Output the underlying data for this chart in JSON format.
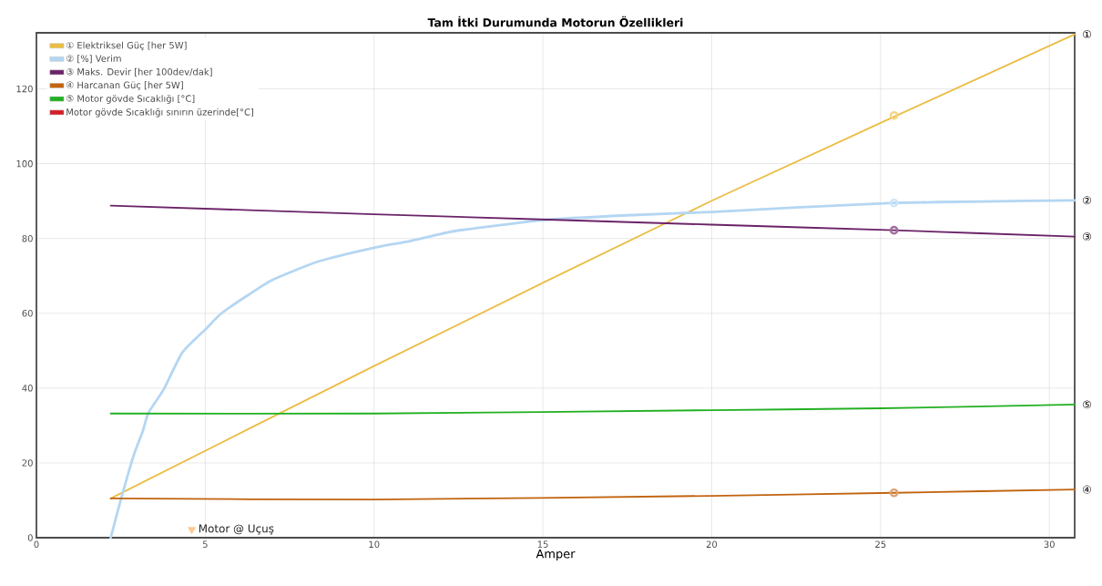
{
  "chart_data": {
    "type": "line",
    "title": "Tam İtki Durumunda Motorun Özellikleri",
    "xlabel": "Amper",
    "xlim": [
      0,
      30.75
    ],
    "ylim": [
      0,
      135
    ],
    "xticks": [
      0,
      5,
      10,
      15,
      20,
      25,
      30
    ],
    "yticks": [
      0,
      20,
      40,
      60,
      80,
      100,
      120
    ],
    "grid": true,
    "legend": "top left",
    "series": [
      {
        "name": "① Elektriksel Güç [her 5W]",
        "color": "#ebbd44",
        "x": [
          2.2,
          10,
          20,
          30.75
        ],
        "values": [
          10.5,
          45.9,
          90.1,
          134.6
        ]
      },
      {
        "name": "② [%] Verim",
        "color": "#b4d6f2",
        "x": [
          2.2,
          2.51,
          2.88,
          3.15,
          3.32,
          3.78,
          4.32,
          5.04,
          5.48,
          6.29,
          7.01,
          8.36,
          10.03,
          11.06,
          12.4,
          15,
          17.5,
          20,
          22.5,
          25.4,
          28,
          30.75
        ],
        "values": [
          0,
          10.5,
          22,
          28.5,
          33.4,
          39.8,
          49.5,
          56,
          60,
          65,
          69,
          73.9,
          77.6,
          79.3,
          82,
          84.9,
          86.2,
          87.1,
          88.3,
          89.5,
          89.9,
          90.2
        ]
      },
      {
        "name": "③ Maks. Devir [her 100dev/dak]",
        "color": "#6b2368",
        "x": [
          2.2,
          10,
          20,
          25.4,
          30.75
        ],
        "values": [
          88.8,
          86.5,
          83.7,
          82.2,
          80.5
        ]
      },
      {
        "name": "④ Harcanan Güç [her 5W]",
        "color": "#c2630e",
        "x": [
          2.2,
          10,
          20,
          25.4,
          30.75
        ],
        "values": [
          10.5,
          10.2,
          11.2,
          12,
          12.9
        ]
      },
      {
        "name": "⑤ Motor gövde Sıcaklığı [°C]",
        "color": "#22b022",
        "x": [
          2.2,
          10,
          20,
          25,
          30.75
        ],
        "values": [
          33.2,
          33.2,
          34.1,
          34.6,
          35.6
        ]
      },
      {
        "name": "Motor gövde Sıcaklığı sınırın üzerinde[°C]",
        "color": "#d21f2a"
      },
      {
        "type": "scatter",
        "marker": "circle",
        "x": [
          25.4,
          25.4,
          25.4,
          25.4
        ],
        "values": [
          112.9,
          89.5,
          82.2,
          12
        ],
        "colors": [
          "#f2d587",
          "#cfe5f7",
          "#9f6e9d",
          "#dca273"
        ]
      },
      {
        "type": "scatter",
        "marker": "triangle",
        "name": "Motor @ Uçuş",
        "color": "#ffc891",
        "x": [
          4.6
        ],
        "values": [
          2.2
        ]
      }
    ],
    "annotations": [
      "①",
      "②",
      "③",
      "④",
      "⑤"
    ]
  }
}
